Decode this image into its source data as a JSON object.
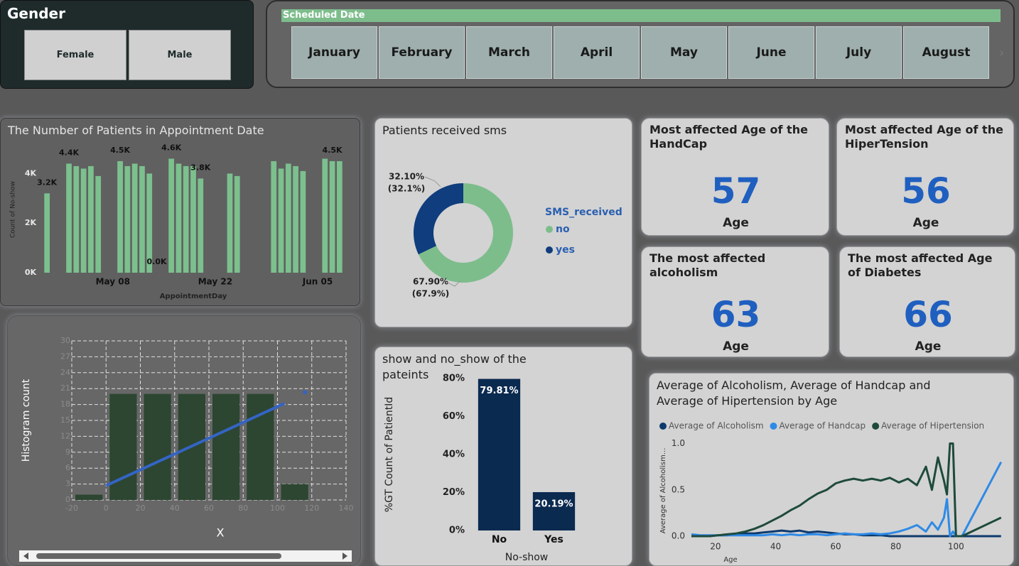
{
  "gender_slicer": {
    "title": "Gender",
    "options": [
      "Female",
      "Male"
    ]
  },
  "date_slicer": {
    "title": "Scheduled Date",
    "options": [
      "January",
      "February",
      "March",
      "April",
      "May",
      "June",
      "July",
      "August"
    ]
  },
  "cards": [
    {
      "title": "Most affected Age of the HandCap",
      "value": 57,
      "unit": "Age"
    },
    {
      "title": "Most affected Age of the HiperTension",
      "value": 56,
      "unit": "Age"
    },
    {
      "title": "The most affected alcoholism",
      "value": 63,
      "unit": "Age"
    },
    {
      "title": "The most affected Age of Diabetes",
      "value": 66,
      "unit": "Age"
    }
  ],
  "chart_data": [
    {
      "type": "bar",
      "title": "The Number of Patients in Appointment Date",
      "categories": [
        null,
        null,
        null,
        null,
        null,
        null,
        null,
        null,
        null,
        "May 08",
        null,
        null,
        null,
        null,
        null,
        null,
        null,
        null,
        null,
        null,
        null,
        null,
        null,
        "May 22",
        null,
        null,
        null,
        null,
        null,
        null,
        null,
        null,
        null,
        null,
        null,
        null,
        null,
        "Jun 05",
        null,
        null,
        null
      ],
      "values": [
        3200,
        null,
        null,
        4400,
        4300,
        4200,
        4300,
        3900,
        null,
        null,
        4500,
        4300,
        4400,
        4300,
        4000,
        0,
        null,
        4600,
        4400,
        4300,
        4300,
        3800,
        null,
        null,
        null,
        4000,
        3900,
        null,
        null,
        null,
        null,
        4500,
        4200,
        4400,
        4300,
        4100,
        null,
        null,
        4600,
        4500,
        4500
      ],
      "value_labels": [
        "3.2K",
        null,
        null,
        "4.4K",
        null,
        null,
        null,
        null,
        null,
        null,
        "4.5K",
        null,
        null,
        null,
        null,
        "0.0K",
        null,
        "4.6K",
        null,
        null,
        null,
        "3.8K",
        null,
        null,
        null,
        null,
        null,
        null,
        null,
        null,
        null,
        null,
        null,
        null,
        null,
        null,
        null,
        null,
        null,
        "4.5K",
        null
      ],
      "color": "#7cc08e",
      "ylim": [
        0,
        5100
      ],
      "yticks": [
        {
          "value": 0,
          "label": "0K"
        },
        {
          "value": 2000,
          "label": "2K"
        },
        {
          "value": 4000,
          "label": "4K"
        }
      ],
      "xlabel": "AppointmentDay",
      "ylabel": "Count of No-show",
      "grid": false
    },
    {
      "type": "pie",
      "title": "Patients received sms",
      "legend_title": "SMS_received",
      "categories": [
        "no",
        "yes"
      ],
      "values": [
        67.9,
        32.1
      ],
      "value_labels": [
        "67.90%",
        "32.10%"
      ],
      "value_labels_2": [
        "(67.9%)",
        "(32.1%)"
      ],
      "colors": [
        "#7dbd8c",
        "#0f3d7d"
      ],
      "hole": true
    },
    {
      "type": "histogram",
      "bins": [
        -20,
        0,
        20,
        40,
        60,
        80,
        100,
        120
      ],
      "values": [
        1,
        20,
        20,
        20,
        20,
        20,
        3
      ],
      "color": "#2c4631",
      "xlim": [
        -20,
        140
      ],
      "xticks": [
        -20,
        0,
        20,
        40,
        60,
        80,
        100,
        120,
        140
      ],
      "ylim": [
        0,
        30
      ],
      "yticks": [
        0,
        3,
        6,
        9,
        12,
        15,
        18,
        21,
        24,
        27,
        30
      ],
      "grid": true,
      "xlabel": "X",
      "ylabel": "Histogram count",
      "trend": {
        "x": [
          0,
          104
        ],
        "y": [
          2.7,
          18.2
        ],
        "color": "#3464c4"
      },
      "point": {
        "x": 116,
        "y": 20.3,
        "color": "#3464c4"
      }
    },
    {
      "type": "bar",
      "title": "show and no_show of the pateints",
      "categories": [
        "No",
        "Yes"
      ],
      "values": [
        79.81,
        20.19
      ],
      "value_labels": [
        "79.81%",
        "20.19%"
      ],
      "color": "#0b2a50",
      "ylim": [
        0,
        80
      ],
      "yticks": [
        {
          "value": 0,
          "label": "0%"
        },
        {
          "value": 20,
          "label": "20%"
        },
        {
          "value": 40,
          "label": "40%"
        },
        {
          "value": 60,
          "label": "60%"
        },
        {
          "value": 80,
          "label": "80%"
        }
      ],
      "xlabel": "No-show",
      "ylabel": "%GT Count of PatientId",
      "grid": false
    },
    {
      "type": "line",
      "title": "Average of Alcoholism, Average of Handcap and Average of Hipertension by Age",
      "x": [
        12,
        15,
        18,
        21,
        24,
        27,
        30,
        33,
        36,
        39,
        42,
        45,
        48,
        51,
        54,
        57,
        60,
        63,
        66,
        69,
        72,
        75,
        78,
        81,
        84,
        87,
        90,
        92,
        94,
        96,
        97,
        98,
        99,
        100,
        102,
        115
      ],
      "series": [
        {
          "name": "Average of Alcoholism",
          "color": "#0e3a6e",
          "values": [
            0,
            0,
            0,
            0.01,
            0.01,
            0.02,
            0.03,
            0.03,
            0.04,
            0.05,
            0.06,
            0.05,
            0.06,
            0.04,
            0.05,
            0.04,
            0.03,
            0.02,
            0.02,
            0.01,
            0.01,
            0.01,
            0,
            0,
            0,
            0,
            0,
            0,
            0,
            0,
            0,
            0,
            0,
            0,
            0,
            0
          ]
        },
        {
          "name": "Average of Handcap",
          "color": "#2f8ae6",
          "values": [
            0.02,
            0.01,
            0.01,
            0.01,
            0.01,
            0.01,
            0.01,
            0.01,
            0.01,
            0.02,
            0.01,
            0.02,
            0.01,
            0.02,
            0.02,
            0.01,
            0.02,
            0.03,
            0.02,
            0.02,
            0.03,
            0.02,
            0.03,
            0.05,
            0.08,
            0.12,
            0.05,
            0.15,
            0.07,
            0.2,
            0.4,
            0,
            0.05,
            0,
            0,
            0.8
          ]
        },
        {
          "name": "Average of Hipertension",
          "color": "#1e4a3c",
          "values": [
            0,
            0,
            0,
            0.01,
            0.02,
            0.03,
            0.05,
            0.08,
            0.12,
            0.17,
            0.22,
            0.28,
            0.33,
            0.4,
            0.46,
            0.5,
            0.57,
            0.6,
            0.62,
            0.6,
            0.62,
            0.6,
            0.63,
            0.58,
            0.62,
            0.55,
            0.75,
            0.5,
            0.85,
            0.6,
            0.45,
            1,
            1,
            0,
            0,
            0.2
          ]
        }
      ],
      "xlim": [
        12,
        116
      ],
      "xticks": [
        20,
        40,
        60,
        80,
        100
      ],
      "ylim": [
        0,
        1.05
      ],
      "yticks": [
        {
          "value": 0,
          "label": "0.0"
        },
        {
          "value": 0.5,
          "label": "0.5"
        },
        {
          "value": 1,
          "label": "1.0"
        }
      ],
      "xlabel": "Age",
      "ylabel": "Average of Alcoholism..."
    }
  ]
}
